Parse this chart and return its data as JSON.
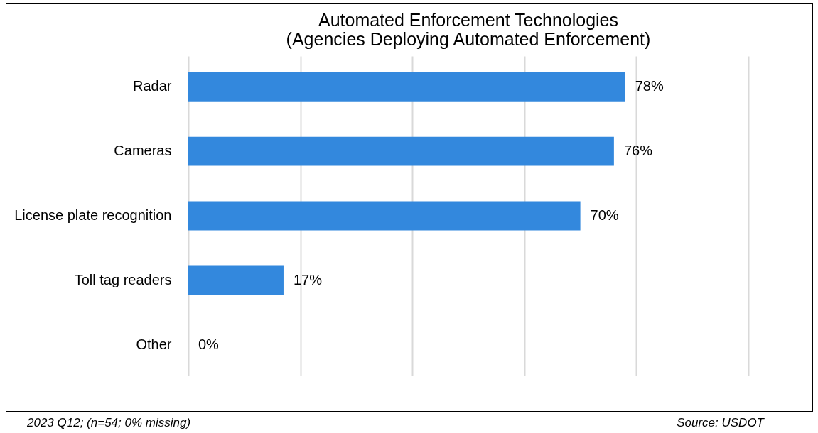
{
  "chart_data": {
    "type": "bar",
    "orientation": "horizontal",
    "title": "Automated Enforcement Technologies\n(Agencies Deploying Automated Enforcement)",
    "categories": [
      "Radar",
      "Cameras",
      "License plate recognition",
      "Toll tag readers",
      "Other"
    ],
    "values": [
      78,
      76,
      70,
      17,
      0
    ],
    "value_labels": [
      "78%",
      "76%",
      "70%",
      "17%",
      "0%"
    ],
    "color": "#3388dd",
    "xlim": [
      0,
      100
    ],
    "xticks": [
      {
        "value": 0,
        "label": null
      },
      {
        "value": 20,
        "label": null
      },
      {
        "value": 40,
        "label": null
      },
      {
        "value": 60,
        "label": null
      },
      {
        "value": 80,
        "label": null
      },
      {
        "value": 100,
        "label": null
      }
    ],
    "grid": "x",
    "annotations": [
      "2023 Q12; (n=54; 0% missing)",
      "Source: USDOT"
    ]
  }
}
